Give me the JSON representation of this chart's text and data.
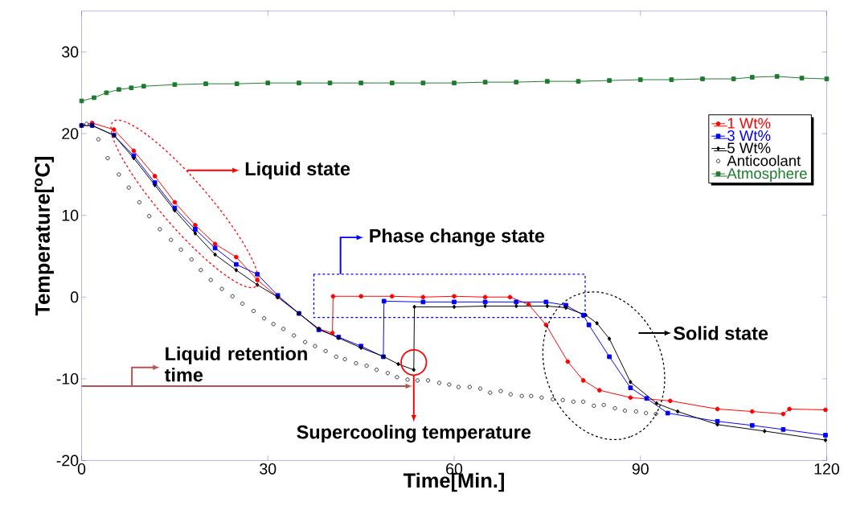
{
  "chart_data": {
    "type": "line",
    "xlabel": "Time[Min.]",
    "ylabel": "Temperature[$^{o}$C]",
    "xlim": [
      0,
      120
    ],
    "ylim": [
      -20,
      35
    ],
    "xticks": [
      0,
      30,
      60,
      90,
      120
    ],
    "yticks": [
      -20,
      -10,
      0,
      10,
      20,
      30
    ],
    "legend": "top right",
    "grid": false,
    "line_style": "solid",
    "annotations": [
      "Liquid state",
      "Phase change state",
      "Solid state",
      "Liquid retention time",
      "Supercooling temperature"
    ],
    "series": [
      {
        "name": "1 Wt%",
        "color": "#ff0000",
        "marker": "circle",
        "x": [
          0,
          1.7,
          5.2,
          8.4,
          11.8,
          15,
          18.3,
          21.5,
          24.9,
          28.3,
          31.6,
          35,
          38.2,
          40.4,
          40.5,
          45,
          50,
          55,
          60,
          65,
          69,
          72,
          74.8,
          78.3,
          80.8,
          83.4,
          88.4,
          94.8,
          102.4,
          108,
          113,
          114,
          119.8
        ],
        "values": [
          21,
          21.3,
          20.5,
          17.9,
          14.8,
          11.6,
          8.8,
          6.5,
          4.9,
          2.1,
          0,
          -2,
          -3.9,
          -4.4,
          0.1,
          0.1,
          0.1,
          0,
          0.1,
          0,
          0,
          -0.9,
          -3.4,
          -7.9,
          -10.2,
          -11.4,
          -12.3,
          -12.7,
          -13.7,
          -14,
          -14.3,
          -13.7,
          -13.8
        ]
      },
      {
        "name": "3 Wt%",
        "color": "#0000ff",
        "marker": "square",
        "x": [
          0,
          1.7,
          5.2,
          8.4,
          11.8,
          15,
          18.3,
          21.5,
          24.9,
          28.3,
          31.6,
          35,
          38.2,
          41.4,
          45,
          48.6,
          48.7,
          55,
          60,
          65,
          70,
          74.8,
          78,
          80.8,
          81.7,
          85,
          88.4,
          91,
          94.4,
          102.4,
          108,
          113,
          119.8
        ],
        "values": [
          21,
          21,
          19.8,
          17.3,
          14,
          10.9,
          8.3,
          6,
          4,
          2.8,
          0.2,
          -2,
          -4,
          -4.9,
          -6,
          -7.3,
          -0.5,
          -0.6,
          -0.6,
          -0.6,
          -0.6,
          -0.6,
          -1,
          -2.2,
          -3.4,
          -7.3,
          -11.1,
          -12.4,
          -14.2,
          -15.2,
          -15.7,
          -16.2,
          -16.9
        ]
      },
      {
        "name": "5 Wt%",
        "color": "#000000",
        "marker": "diamond",
        "x": [
          0,
          1.7,
          5.2,
          8.4,
          11.8,
          15,
          18.3,
          21.5,
          24.9,
          28.3,
          31.6,
          35,
          38.2,
          41.4,
          45,
          48.7,
          51,
          53.5,
          53.6,
          60,
          65,
          70,
          75,
          78,
          81.2,
          83,
          85,
          88.4,
          92.6,
          96,
          102.4,
          110,
          119.8
        ],
        "values": [
          21,
          21,
          19.8,
          17,
          13.7,
          10.6,
          7.8,
          5.2,
          3.3,
          1.5,
          0,
          -2,
          -3.9,
          -5,
          -6.2,
          -7.3,
          -8.2,
          -8.9,
          -1.2,
          -1.2,
          -1.1,
          -1.1,
          -1.1,
          -1.3,
          -2.2,
          -3.2,
          -5.1,
          -10.4,
          -13,
          -14,
          -15.6,
          -16.4,
          -17.5
        ]
      },
      {
        "name": "Anticoolant",
        "color": "#000000",
        "type": "scatter",
        "marker": "circle",
        "x": [
          0.8,
          2.7,
          4.2,
          6,
          7.6,
          9.3,
          10.9,
          12.6,
          14.4,
          16,
          17.7,
          19.2,
          20.8,
          22.6,
          24.3,
          25.9,
          27.7,
          29.4,
          30.9,
          32.5,
          34.2,
          36,
          37.6,
          39.3,
          41,
          42.4,
          44.2,
          45.9,
          47.5,
          49.3,
          50.8,
          52.5,
          54.1,
          55.8,
          57.6,
          59.2,
          60.7,
          62.5,
          64.2,
          65.8,
          67.5,
          69.1,
          70.9,
          72.4,
          74.1,
          75.9,
          77.5,
          79.2,
          80.8,
          82.5,
          84.1,
          85.9,
          87.5,
          89.3,
          90.9,
          92.5
        ],
        "values": [
          21.2,
          19.3,
          17,
          15,
          13.4,
          11.6,
          9.9,
          8.3,
          7,
          5.8,
          4.6,
          3.3,
          2.1,
          1,
          0.1,
          -0.8,
          -1.7,
          -2.6,
          -3.3,
          -3.9,
          -4.7,
          -5.5,
          -6,
          -6.6,
          -7.3,
          -7.6,
          -8.1,
          -8.4,
          -8.9,
          -9.3,
          -9.8,
          -10.1,
          -10.2,
          -10.2,
          -10.5,
          -10.7,
          -11,
          -11,
          -11.2,
          -11.7,
          -11.5,
          -11.9,
          -12.1,
          -12.1,
          -12.3,
          -12.5,
          -12.6,
          -12.8,
          -12.8,
          -13.3,
          -13.2,
          -13.6,
          -13.9,
          -14,
          -14.2,
          -14.3
        ]
      },
      {
        "name": "Atmosphere",
        "color": "#1e7a2e",
        "marker": "square",
        "x": [
          0,
          2,
          4,
          6,
          8,
          10,
          15,
          20,
          25,
          30,
          35,
          40,
          45,
          50,
          55,
          60,
          65,
          70,
          75,
          80,
          85,
          90,
          95,
          100,
          105,
          108,
          112,
          116,
          120
        ],
        "values": [
          24,
          24.4,
          25,
          25.4,
          25.6,
          25.8,
          26,
          26.1,
          26.1,
          26.2,
          26.2,
          26.2,
          26.2,
          26.2,
          26.2,
          26.2,
          26.3,
          26.3,
          26.4,
          26.4,
          26.5,
          26.6,
          26.6,
          26.7,
          26.7,
          26.9,
          27,
          26.8,
          26.7
        ]
      }
    ]
  }
}
